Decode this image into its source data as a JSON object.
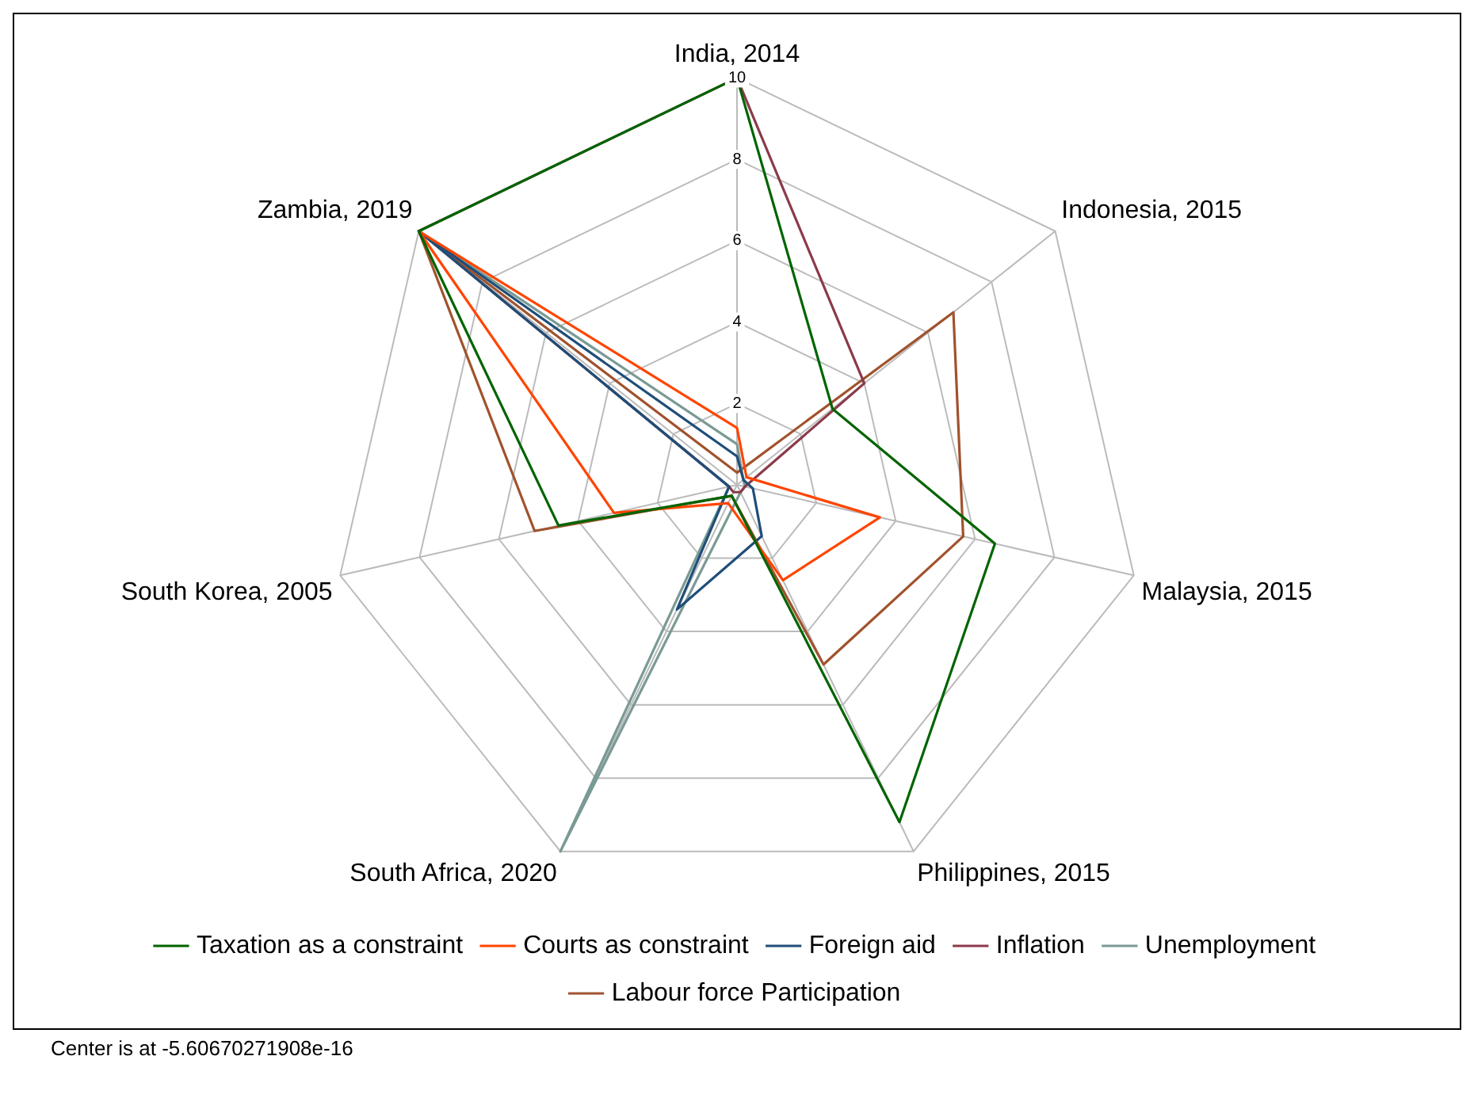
{
  "chart_data": {
    "type": "radar",
    "categories": [
      "India, 2014",
      "Indonesia, 2015",
      "Malaysia, 2015",
      "Philippines, 2015",
      "South Africa, 2020",
      "South Korea, 2005",
      "Zambia, 2019"
    ],
    "series": [
      {
        "name": "Taxation as a constraint",
        "color": "#006400",
        "values": [
          10,
          3.0,
          6.5,
          9.2,
          0.3,
          4.5,
          10
        ]
      },
      {
        "name": "Courts as constraint",
        "color": "#ff4500",
        "values": [
          1.4,
          0.3,
          3.6,
          2.6,
          0.5,
          3.1,
          10
        ]
      },
      {
        "name": "Foreign aid",
        "color": "#1f4e79",
        "values": [
          0.7,
          0.2,
          0.4,
          1.4,
          3.4,
          0.2,
          10
        ]
      },
      {
        "name": "Inflation",
        "color": "#8b3a4a",
        "values": [
          10,
          4.0,
          0.2,
          0.2,
          0.2,
          0.2,
          10
        ]
      },
      {
        "name": "Unemployment",
        "color": "#7a9a95",
        "values": [
          1.0,
          0.2,
          0.2,
          0.2,
          10,
          0.2,
          10
        ]
      },
      {
        "name": "Labour force Participation",
        "color": "#a0522d",
        "values": [
          0.3,
          6.8,
          5.7,
          4.9,
          0.3,
          5.1,
          10
        ]
      }
    ],
    "ylim": [
      0,
      10
    ],
    "yticks": [
      2,
      4,
      6,
      8,
      10
    ],
    "grid": true,
    "legend": "bottom",
    "marker": "none",
    "annotations": [
      "Center is at -5.60670271908e-16"
    ]
  }
}
